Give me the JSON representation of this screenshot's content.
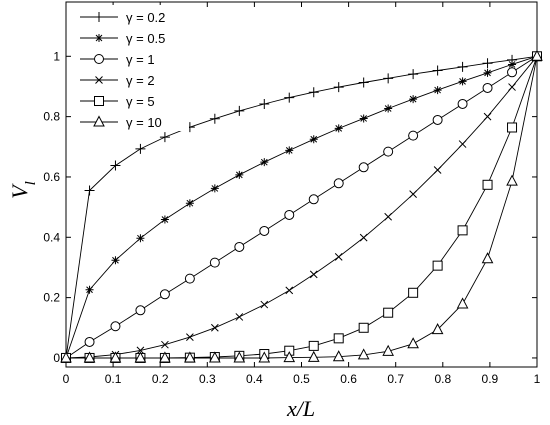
{
  "chart_data": {
    "type": "line",
    "title": "",
    "xlabel": "x/L",
    "ylabel": "V",
    "ylabel_subscript": "l",
    "xlim": [
      0,
      1
    ],
    "ylim": [
      -0.03,
      1.18
    ],
    "xticks": [
      0,
      0.1,
      0.2,
      0.3,
      0.4,
      0.5,
      0.6,
      0.7,
      0.8,
      0.9,
      1
    ],
    "xtick_labels": [
      "0",
      "0.1",
      "0.2",
      "0.3",
      "0.4",
      "0.5",
      "0.6",
      "0.7",
      "0.8",
      "0.9",
      "1"
    ],
    "yticks": [
      0,
      0.2,
      0.4,
      0.6,
      0.8,
      1
    ],
    "ytick_labels": [
      "0",
      "0.2",
      "0.4",
      "0.6",
      "0.8",
      "1"
    ],
    "grid": false,
    "legend_position": "top-left",
    "line_color": "#000000",
    "x": [
      0,
      0.05,
      0.105,
      0.158,
      0.21,
      0.263,
      0.316,
      0.368,
      0.421,
      0.474,
      0.526,
      0.579,
      0.632,
      0.684,
      0.737,
      0.789,
      0.842,
      0.895,
      0.947,
      1
    ],
    "series": [
      {
        "name": "γ = 0.2",
        "marker": "plus",
        "values": [
          0,
          0.555,
          0.638,
          0.693,
          0.732,
          0.765,
          0.793,
          0.819,
          0.842,
          0.863,
          0.881,
          0.898,
          0.913,
          0.927,
          0.941,
          0.953,
          0.965,
          0.977,
          0.988,
          1
        ]
      },
      {
        "name": "γ = 0.5",
        "marker": "asterisk",
        "values": [
          0,
          0.226,
          0.324,
          0.397,
          0.459,
          0.513,
          0.562,
          0.607,
          0.649,
          0.688,
          0.725,
          0.761,
          0.794,
          0.827,
          0.858,
          0.888,
          0.917,
          0.945,
          0.973,
          1
        ]
      },
      {
        "name": "γ = 1",
        "marker": "circle",
        "values": [
          0,
          0.053,
          0.105,
          0.158,
          0.211,
          0.263,
          0.316,
          0.368,
          0.421,
          0.474,
          0.526,
          0.579,
          0.632,
          0.684,
          0.737,
          0.789,
          0.842,
          0.895,
          0.947,
          1
        ]
      },
      {
        "name": "γ = 2",
        "marker": "cross",
        "values": [
          0,
          0.003,
          0.011,
          0.025,
          0.044,
          0.069,
          0.1,
          0.136,
          0.177,
          0.224,
          0.277,
          0.335,
          0.399,
          0.468,
          0.543,
          0.623,
          0.709,
          0.8,
          0.898,
          1
        ]
      },
      {
        "name": "γ = 5",
        "marker": "square",
        "values": [
          0,
          0,
          0,
          0,
          0,
          0.001,
          0.003,
          0.007,
          0.013,
          0.024,
          0.04,
          0.065,
          0.1,
          0.15,
          0.216,
          0.306,
          0.423,
          0.574,
          0.764,
          1
        ]
      },
      {
        "name": "γ = 10",
        "marker": "triangle",
        "values": [
          0,
          0,
          0,
          0,
          0,
          0,
          0,
          0,
          0,
          0.001,
          0.002,
          0.004,
          0.01,
          0.022,
          0.047,
          0.094,
          0.179,
          0.329,
          0.586,
          1
        ]
      }
    ]
  }
}
